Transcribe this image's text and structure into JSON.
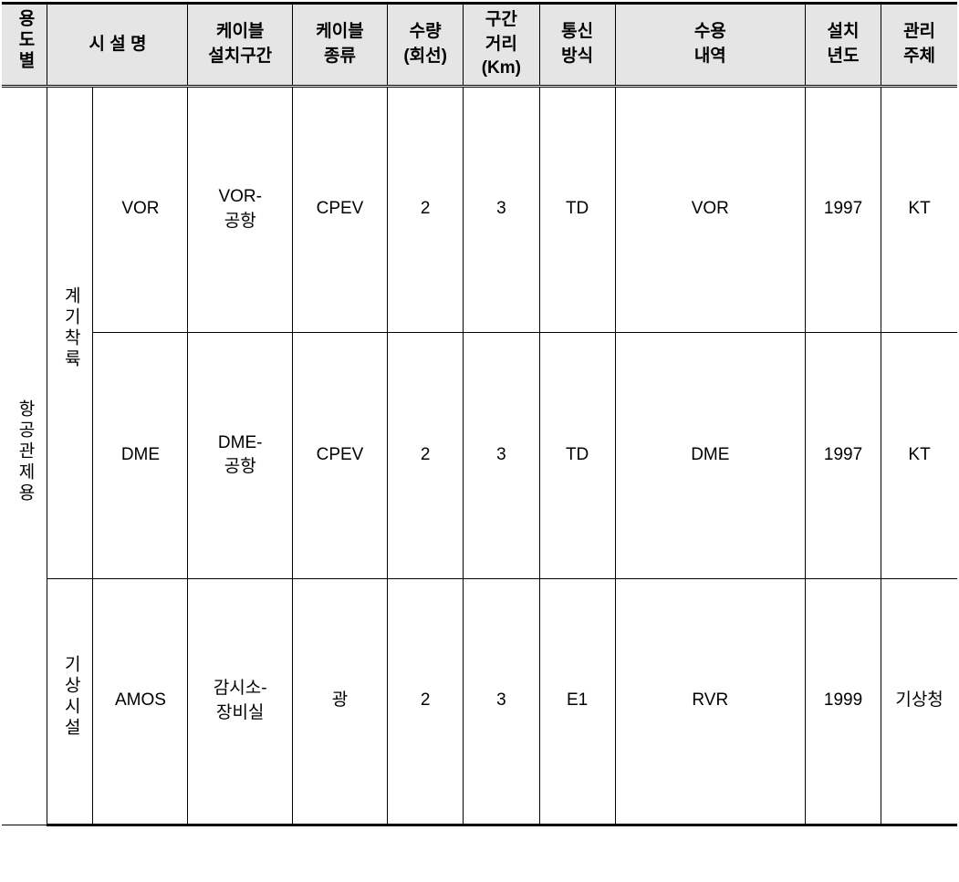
{
  "headers": {
    "purpose": "용도별",
    "facility_name": "시 설 명",
    "cable_section": "케이블\n설치구간",
    "cable_type": "케이블\n종류",
    "quantity": "수량\n(회선)",
    "distance": "구간\n거리\n(Km)",
    "comm_method": "통신\n방식",
    "content": "수용\n내역",
    "install_year": "설치\n년도",
    "manager": "관리\n주체"
  },
  "rows": [
    {
      "purpose": "항공관제용",
      "category": "계기착륙",
      "facility": "VOR",
      "section": "VOR-\n공항",
      "cable_type": "CPEV",
      "quantity": "2",
      "distance": "3",
      "comm_method": "TD",
      "content": "VOR",
      "install_year": "1997",
      "manager": "KT"
    },
    {
      "facility": "DME",
      "section": "DME-\n공항",
      "cable_type": "CPEV",
      "quantity": "2",
      "distance": "3",
      "comm_method": "TD",
      "content": "DME",
      "install_year": "1997",
      "manager": "KT"
    },
    {
      "category": "기상시설",
      "facility": "AMOS",
      "section": "감시소-\n장비실",
      "cable_type": "광",
      "quantity": "2",
      "distance": "3",
      "comm_method": "E1",
      "content": "RVR",
      "install_year": "1999",
      "manager": "기상청"
    }
  ],
  "styling": {
    "header_bg": "#e5e5e5",
    "border_color": "#000000",
    "background": "#ffffff",
    "font_size_header": 19,
    "font_size_body": 19,
    "outer_border_width": 3,
    "inner_border_width": 1
  }
}
